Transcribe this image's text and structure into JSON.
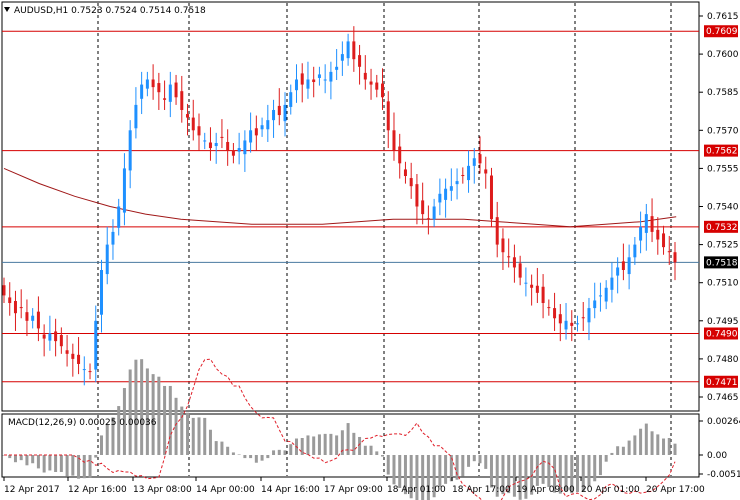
{
  "header": {
    "symbol_line": "AUDUSD,H1  0.7523 0.7524 0.7514 0.7518",
    "dropdown_icon": "triangle-down-icon"
  },
  "macd": {
    "title": "MACD(12,26,9) 0.00025 0.00036",
    "scale": [
      "0.00264",
      "0.00",
      "-0.00514"
    ]
  },
  "colors": {
    "bull": "#1e90ff",
    "bear": "#dd1c1c",
    "level_line": "#d60000",
    "ma_line": "#a01818",
    "current_line": "#4a7aa0",
    "histogram": "#9a9a9a",
    "signal": "#e0202a",
    "grid": "#000000"
  },
  "price_axis": {
    "ticks": [
      "0.7615",
      "0.7600",
      "0.7585",
      "0.7570",
      "0.7555",
      "0.7540",
      "0.7525",
      "0.7510",
      "0.7495",
      "0.7480",
      "0.7465"
    ],
    "levels": [
      {
        "label": "0.7609",
        "value": 0.7609
      },
      {
        "label": "0.7562",
        "value": 0.7562
      },
      {
        "label": "0.7532",
        "value": 0.7532
      },
      {
        "label": "0.7490",
        "value": 0.749
      },
      {
        "label": "0.7471",
        "value": 0.7471
      }
    ],
    "current": {
      "label": "0.7518",
      "value": 0.7518
    }
  },
  "time_axis": {
    "labels": [
      "12 Apr 2017",
      "12 Apr 16:00",
      "13 Apr 08:00",
      "14 Apr 00:00",
      "14 Apr 16:00",
      "17 Apr 09:00",
      "18 Apr 01:00",
      "18 Apr 17:00",
      "19 Apr 09:00",
      "20 Apr 01:00",
      "20 Apr 17:00"
    ]
  },
  "chart_data": {
    "type": "candlestick",
    "title": "AUDUSD,H1",
    "ylim": [
      0.746,
      0.762
    ],
    "x_labels": [
      "12 Apr 2017",
      "12 Apr 16:00",
      "13 Apr 08:00",
      "14 Apr 00:00",
      "14 Apr 16:00",
      "17 Apr 09:00",
      "18 Apr 01:00",
      "18 Apr 17:00",
      "19 Apr 09:00",
      "20 Apr 01:00",
      "20 Apr 17:00"
    ],
    "close_path": [
      0.7505,
      0.7502,
      0.7498,
      0.75,
      0.7495,
      0.7497,
      0.7492,
      0.7488,
      0.749,
      0.7487,
      0.7485,
      0.7482,
      0.748,
      0.7478,
      0.7476,
      0.7475,
      0.7495,
      0.7515,
      0.7525,
      0.753,
      0.754,
      0.7555,
      0.757,
      0.758,
      0.7588,
      0.759,
      0.7587,
      0.7585,
      0.7582,
      0.7588,
      0.7583,
      0.7578,
      0.7575,
      0.757,
      0.7568,
      0.7566,
      0.7563,
      0.7565,
      0.7567,
      0.7562,
      0.756,
      0.7563,
      0.7566,
      0.757,
      0.7568,
      0.7572,
      0.7574,
      0.7578,
      0.7576,
      0.758,
      0.7585,
      0.759,
      0.7588,
      0.759,
      0.7589,
      0.7592,
      0.759,
      0.7593,
      0.7595,
      0.76,
      0.7605,
      0.7598,
      0.7595,
      0.759,
      0.7588,
      0.7586,
      0.7583,
      0.757,
      0.7562,
      0.7557,
      0.7552,
      0.7548,
      0.754,
      0.7537,
      0.7535,
      0.754,
      0.7545,
      0.7547,
      0.7548,
      0.755,
      0.7552,
      0.7556,
      0.7559,
      0.7557,
      0.7553,
      0.7535,
      0.7525,
      0.7522,
      0.752,
      0.7516,
      0.7512,
      0.751,
      0.7508,
      0.7506,
      0.7502,
      0.75,
      0.7496,
      0.7494,
      0.7495,
      0.7493,
      0.7494,
      0.7496,
      0.75,
      0.7503,
      0.7505,
      0.7508,
      0.7512,
      0.7516,
      0.7515,
      0.752,
      0.7525,
      0.7532,
      0.7537,
      0.753,
      0.7527,
      0.7524,
      0.7522,
      0.7518
    ],
    "series": [
      {
        "name": "MA",
        "values": [
          0.7555,
          0.7549,
          0.7544,
          0.754,
          0.7537,
          0.7535,
          0.7534,
          0.7533,
          0.7533,
          0.7533,
          0.7534,
          0.7535,
          0.7535,
          0.7535,
          0.7534,
          0.7533,
          0.7532,
          0.7533,
          0.7534,
          0.7536
        ]
      }
    ]
  }
}
